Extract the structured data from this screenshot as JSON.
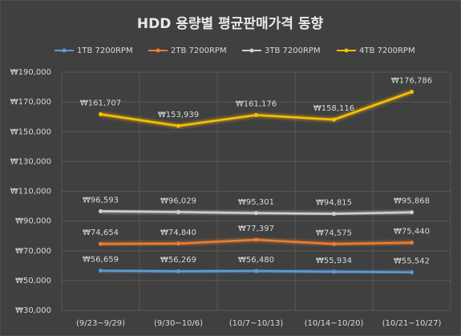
{
  "chart_data": {
    "type": "line",
    "title": "HDD 용량별 평균판매가격 동향",
    "categories": [
      "(9/23~9/29)",
      "(9/30~10/6)",
      "(10/7~10/13)",
      "(10/14~10/20)",
      "(10/21~10/27)"
    ],
    "series": [
      {
        "name": "1TB 7200RPM",
        "color": "#5b9bd5",
        "values": [
          56659,
          56269,
          56480,
          55934,
          55542
        ],
        "value_labels": [
          "₩56,659",
          "₩56,269",
          "₩56,480",
          "₩55,934",
          "₩55,542"
        ]
      },
      {
        "name": "2TB 7200RPM",
        "color": "#ed7d31",
        "values": [
          74654,
          74840,
          77397,
          74575,
          75440
        ],
        "value_labels": [
          "₩74,654",
          "₩74,840",
          "₩77,397",
          "₩74,575",
          "₩75,440"
        ]
      },
      {
        "name": "3TB 7200RPM",
        "color": "#d0d0d0",
        "values": [
          96593,
          96029,
          95301,
          94815,
          95868
        ],
        "value_labels": [
          "₩96,593",
          "₩96,029",
          "₩95,301",
          "₩94,815",
          "₩95,868"
        ]
      },
      {
        "name": "4TB 7200RPM",
        "color": "#ffc000",
        "values": [
          161707,
          153939,
          161176,
          158116,
          176786
        ],
        "value_labels": [
          "₩161,707",
          "₩153,939",
          "₩161,176",
          "₩158,116",
          "₩176,786"
        ]
      }
    ],
    "ylim": [
      30000,
      190000
    ],
    "yticks": [
      {
        "value": 30000,
        "label": "₩30,000"
      },
      {
        "value": 50000,
        "label": "₩50,000"
      },
      {
        "value": 70000,
        "label": "₩70,000"
      },
      {
        "value": 90000,
        "label": "₩90,000"
      },
      {
        "value": 110000,
        "label": "₩110,000"
      },
      {
        "value": 130000,
        "label": "₩130,000"
      },
      {
        "value": 150000,
        "label": "₩150,000"
      },
      {
        "value": 170000,
        "label": "₩170,000"
      },
      {
        "value": 190000,
        "label": "₩190,000"
      }
    ],
    "grid": true
  }
}
